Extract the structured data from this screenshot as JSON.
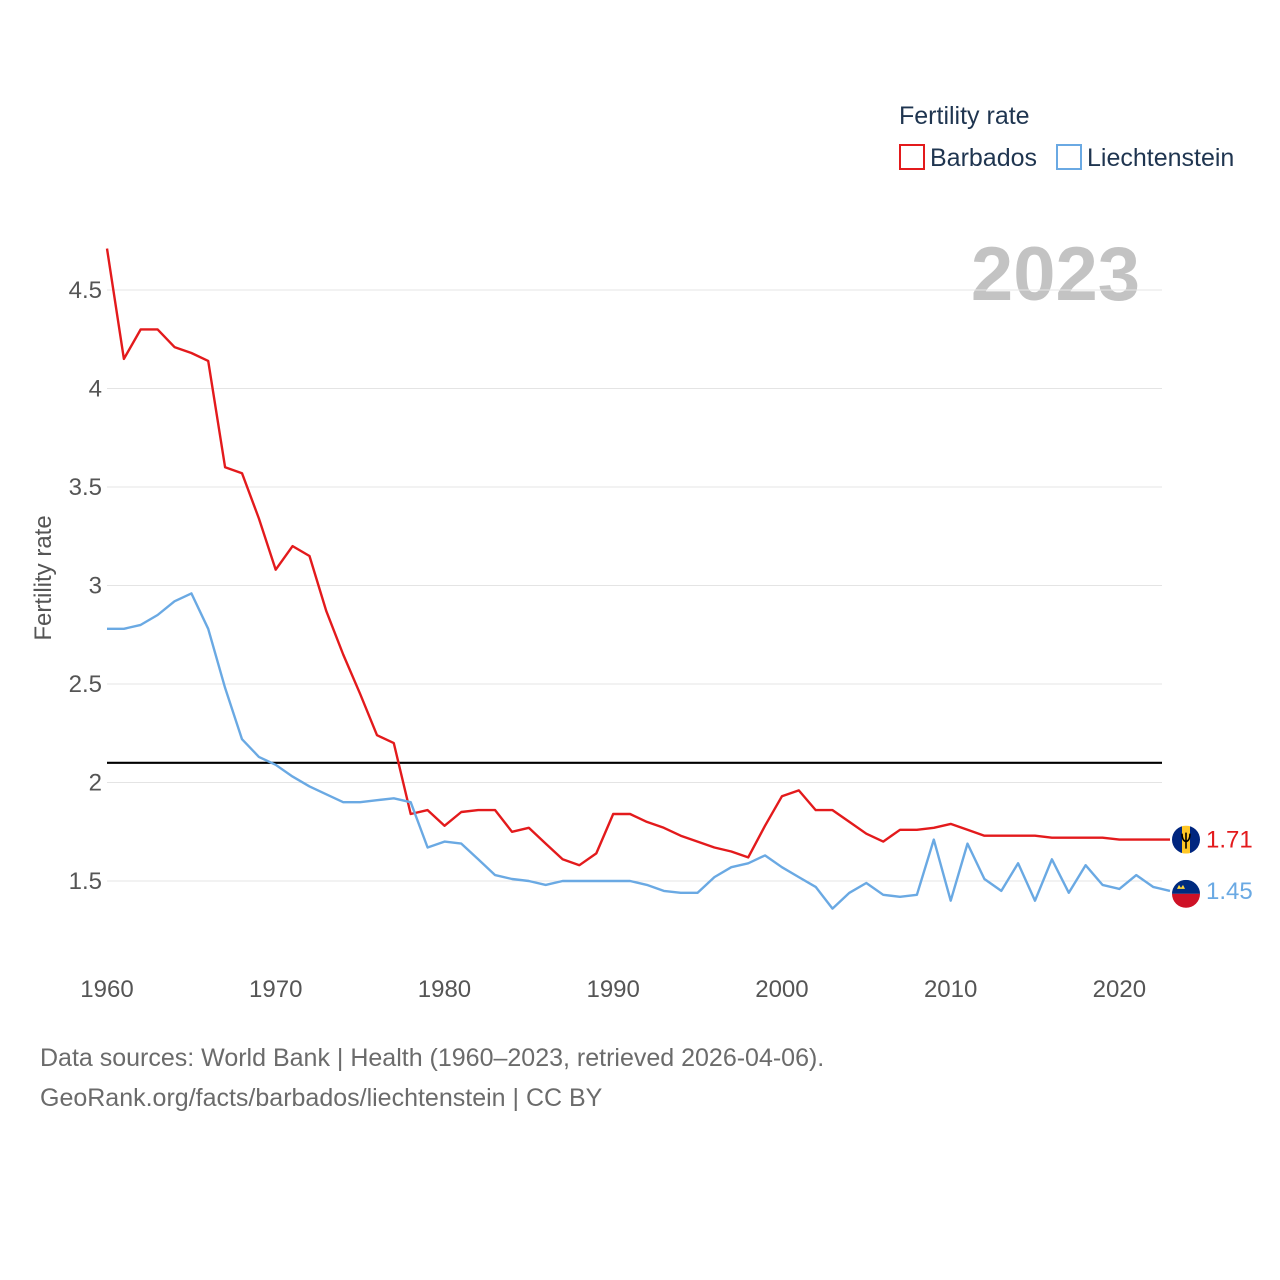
{
  "chart_data": {
    "type": "line",
    "title": "Fertility rate",
    "year_label": "2023",
    "xlabel": "",
    "ylabel": "Fertility rate",
    "xlim": [
      1960,
      2023
    ],
    "ylim": [
      1.2,
      4.75
    ],
    "x_ticks": [
      1960,
      1970,
      1980,
      1990,
      2000,
      2010,
      2020
    ],
    "y_ticks": [
      1.5,
      2,
      2.5,
      3,
      3.5,
      4,
      4.5
    ],
    "grid": true,
    "legend_position": "top-right",
    "reference_line": {
      "value": 2.1,
      "color": "#000000"
    },
    "x": [
      1960,
      1961,
      1962,
      1963,
      1964,
      1965,
      1966,
      1967,
      1968,
      1969,
      1970,
      1971,
      1972,
      1973,
      1974,
      1975,
      1976,
      1977,
      1978,
      1979,
      1980,
      1981,
      1982,
      1983,
      1984,
      1985,
      1986,
      1987,
      1988,
      1989,
      1990,
      1991,
      1992,
      1993,
      1994,
      1995,
      1996,
      1997,
      1998,
      1999,
      2000,
      2001,
      2002,
      2003,
      2004,
      2005,
      2006,
      2007,
      2008,
      2009,
      2010,
      2011,
      2012,
      2013,
      2014,
      2015,
      2016,
      2017,
      2018,
      2019,
      2020,
      2021,
      2022,
      2023
    ],
    "series": [
      {
        "name": "Barbados",
        "color": "#e31a1c",
        "end_label": "1.71",
        "values": [
          4.71,
          4.15,
          4.3,
          4.3,
          4.21,
          4.18,
          4.14,
          3.6,
          3.57,
          3.34,
          3.08,
          3.2,
          3.15,
          2.87,
          2.65,
          2.45,
          2.24,
          2.2,
          1.84,
          1.86,
          1.78,
          1.85,
          1.86,
          1.86,
          1.75,
          1.77,
          1.69,
          1.61,
          1.58,
          1.64,
          1.84,
          1.84,
          1.8,
          1.77,
          1.73,
          1.7,
          1.67,
          1.65,
          1.62,
          1.78,
          1.93,
          1.96,
          1.86,
          1.86,
          1.8,
          1.74,
          1.7,
          1.76,
          1.76,
          1.77,
          1.79,
          1.76,
          1.73,
          1.73,
          1.73,
          1.73,
          1.72,
          1.72,
          1.72,
          1.72,
          1.71,
          1.71,
          1.71,
          1.71
        ]
      },
      {
        "name": "Liechtenstein",
        "color": "#6aa9e3",
        "end_label": "1.45",
        "values": [
          2.78,
          2.78,
          2.8,
          2.85,
          2.92,
          2.96,
          2.78,
          2.48,
          2.22,
          2.13,
          2.09,
          2.03,
          1.98,
          1.94,
          1.9,
          1.9,
          1.91,
          1.92,
          1.9,
          1.67,
          1.7,
          1.69,
          1.61,
          1.53,
          1.51,
          1.5,
          1.48,
          1.5,
          1.5,
          1.5,
          1.5,
          1.5,
          1.48,
          1.45,
          1.44,
          1.44,
          1.52,
          1.57,
          1.59,
          1.63,
          1.57,
          1.52,
          1.47,
          1.36,
          1.44,
          1.49,
          1.43,
          1.42,
          1.43,
          1.71,
          1.4,
          1.69,
          1.51,
          1.45,
          1.59,
          1.4,
          1.61,
          1.44,
          1.58,
          1.48,
          1.46,
          1.53,
          1.47,
          1.45
        ]
      }
    ]
  },
  "footer": {
    "line1": "Data sources: World Bank | Health (1960–2023, retrieved 2026-04-06).",
    "line2": "GeoRank.org/facts/barbados/liechtenstein | CC BY"
  },
  "flags": {
    "barbados": {
      "icon": "barbados-flag-icon",
      "colors": [
        "#00267f",
        "#ffc726",
        "#000000"
      ]
    },
    "liechtenstein": {
      "icon": "liechtenstein-flag-icon",
      "colors": [
        "#002b7f",
        "#ce1126",
        "#ffd83d"
      ]
    }
  }
}
